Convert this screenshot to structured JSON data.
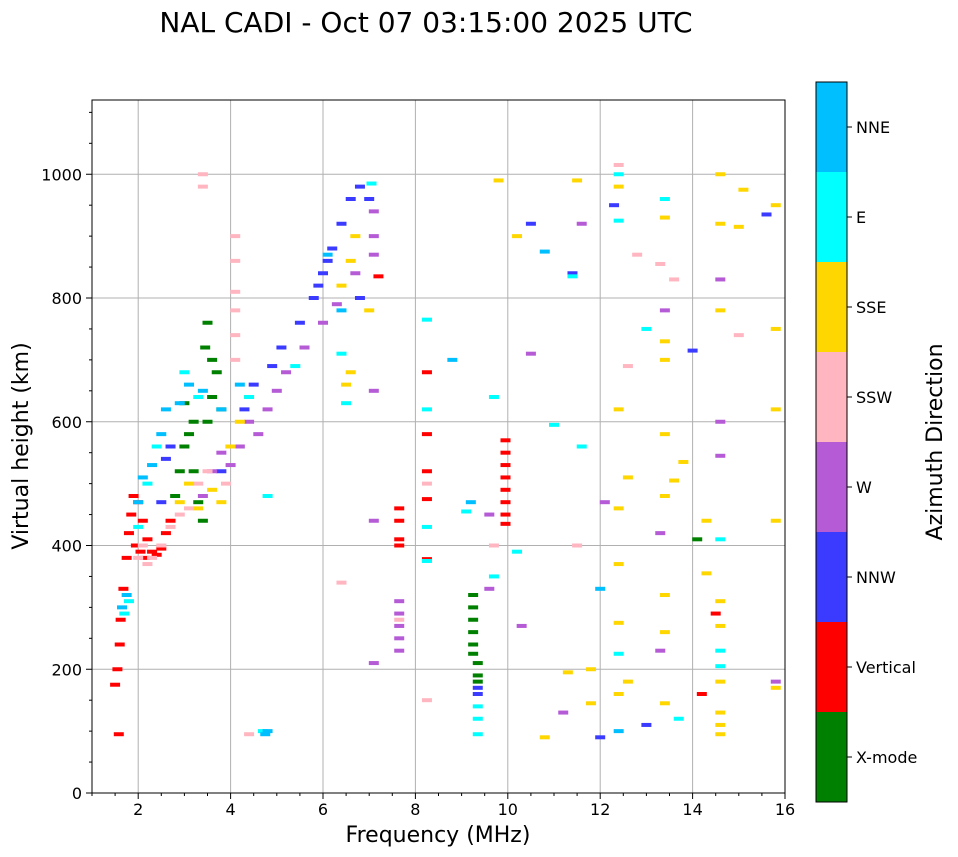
{
  "chart_data": {
    "type": "scatter",
    "title": "NAL CADI - Oct 07 03:15:00 2025 UTC",
    "xlabel": "Frequency (MHz)",
    "ylabel": "Virtual height (km)",
    "xlim": [
      1,
      16
    ],
    "ylim": [
      0,
      1120
    ],
    "grid": true,
    "x_ticks": [
      2,
      4,
      6,
      8,
      10,
      12,
      14,
      16
    ],
    "y_ticks": [
      0,
      200,
      400,
      600,
      800,
      1000
    ],
    "x_tick_labels": [
      "2",
      "4",
      "6",
      "8",
      "10",
      "12",
      "14",
      "16"
    ],
    "y_tick_labels": [
      "0",
      "200",
      "400",
      "600",
      "800",
      "1000"
    ],
    "colorbar": {
      "label": "Azimuth Direction",
      "categories": [
        "X-mode",
        "Vertical",
        "NNW",
        "W",
        "SSW",
        "SSE",
        "E",
        "NNE"
      ],
      "colors": [
        "#008000",
        "#ff0000",
        "#3b3bff",
        "#b55bd6",
        "#ffb6c1",
        "#ffd700",
        "#00ffff",
        "#00bfff"
      ]
    },
    "series": [
      {
        "name": "Vertical",
        "points": [
          [
            1.5,
            175
          ],
          [
            1.55,
            200
          ],
          [
            1.6,
            240
          ],
          [
            1.62,
            280
          ],
          [
            1.68,
            330
          ],
          [
            1.75,
            380
          ],
          [
            1.8,
            420
          ],
          [
            1.85,
            450
          ],
          [
            1.9,
            480
          ],
          [
            2.0,
            470
          ],
          [
            2.1,
            440
          ],
          [
            2.2,
            410
          ],
          [
            2.3,
            390
          ],
          [
            2.4,
            385
          ],
          [
            2.5,
            395
          ],
          [
            2.6,
            420
          ],
          [
            2.7,
            440
          ],
          [
            1.95,
            400
          ],
          [
            2.05,
            390
          ],
          [
            2.15,
            380
          ],
          [
            1.58,
            95
          ],
          [
            7.65,
            460
          ],
          [
            7.65,
            440
          ],
          [
            7.65,
            410
          ],
          [
            7.65,
            400
          ],
          [
            8.25,
            680
          ],
          [
            8.25,
            580
          ],
          [
            8.25,
            520
          ],
          [
            8.25,
            475
          ],
          [
            8.25,
            378
          ],
          [
            9.95,
            570
          ],
          [
            9.95,
            550
          ],
          [
            9.95,
            530
          ],
          [
            9.95,
            510
          ],
          [
            9.95,
            490
          ],
          [
            9.95,
            470
          ],
          [
            9.95,
            450
          ],
          [
            9.95,
            435
          ],
          [
            7.2,
            835
          ],
          [
            14.5,
            290
          ],
          [
            14.2,
            160
          ]
        ]
      },
      {
        "name": "X-mode",
        "points": [
          [
            2.8,
            480
          ],
          [
            2.9,
            520
          ],
          [
            3.0,
            560
          ],
          [
            3.1,
            580
          ],
          [
            3.2,
            520
          ],
          [
            3.3,
            470
          ],
          [
            3.4,
            440
          ],
          [
            3.5,
            600
          ],
          [
            3.6,
            640
          ],
          [
            3.7,
            680
          ],
          [
            3.8,
            620
          ],
          [
            3.5,
            760
          ],
          [
            3.45,
            720
          ],
          [
            3.6,
            700
          ],
          [
            3.2,
            600
          ],
          [
            3.0,
            630
          ],
          [
            9.25,
            320
          ],
          [
            9.25,
            300
          ],
          [
            9.25,
            280
          ],
          [
            9.25,
            260
          ],
          [
            9.25,
            240
          ],
          [
            9.25,
            225
          ],
          [
            9.35,
            210
          ],
          [
            9.35,
            190
          ],
          [
            9.35,
            180
          ],
          [
            14.1,
            410
          ]
        ]
      },
      {
        "name": "NNW",
        "points": [
          [
            2.5,
            470
          ],
          [
            2.6,
            540
          ],
          [
            2.7,
            560
          ],
          [
            3.8,
            520
          ],
          [
            4.0,
            560
          ],
          [
            4.3,
            620
          ],
          [
            4.5,
            660
          ],
          [
            4.9,
            690
          ],
          [
            5.1,
            720
          ],
          [
            5.5,
            760
          ],
          [
            5.8,
            800
          ],
          [
            6.0,
            840
          ],
          [
            6.2,
            880
          ],
          [
            6.4,
            920
          ],
          [
            6.6,
            960
          ],
          [
            6.8,
            980
          ],
          [
            7.0,
            960
          ],
          [
            6.1,
            860
          ],
          [
            5.9,
            820
          ],
          [
            9.35,
            170
          ],
          [
            9.35,
            160
          ],
          [
            10.5,
            920
          ],
          [
            12.3,
            950
          ],
          [
            13.0,
            110
          ],
          [
            14.0,
            715
          ],
          [
            15.6,
            935
          ],
          [
            12.0,
            90
          ],
          [
            11.4,
            840
          ],
          [
            6.8,
            800
          ]
        ]
      },
      {
        "name": "W",
        "points": [
          [
            3.4,
            480
          ],
          [
            3.6,
            520
          ],
          [
            3.8,
            550
          ],
          [
            4.0,
            530
          ],
          [
            4.2,
            560
          ],
          [
            4.4,
            600
          ],
          [
            4.6,
            580
          ],
          [
            4.8,
            620
          ],
          [
            5.0,
            650
          ],
          [
            5.2,
            680
          ],
          [
            5.6,
            720
          ],
          [
            6.0,
            760
          ],
          [
            6.3,
            790
          ],
          [
            6.7,
            840
          ],
          [
            7.1,
            940
          ],
          [
            7.1,
            900
          ],
          [
            7.1,
            870
          ],
          [
            7.65,
            310
          ],
          [
            7.65,
            290
          ],
          [
            7.65,
            270
          ],
          [
            7.65,
            250
          ],
          [
            7.65,
            230
          ],
          [
            7.1,
            650
          ],
          [
            7.1,
            440
          ],
          [
            7.1,
            210
          ],
          [
            9.6,
            330
          ],
          [
            9.6,
            450
          ],
          [
            10.5,
            710
          ],
          [
            10.3,
            270
          ],
          [
            11.6,
            920
          ],
          [
            12.1,
            470
          ],
          [
            13.3,
            420
          ],
          [
            13.3,
            230
          ],
          [
            13.4,
            780
          ],
          [
            14.6,
            830
          ],
          [
            14.6,
            600
          ],
          [
            14.6,
            545
          ],
          [
            15.8,
            180
          ],
          [
            11.2,
            130
          ]
        ]
      },
      {
        "name": "SSW",
        "points": [
          [
            2.0,
            380
          ],
          [
            2.1,
            400
          ],
          [
            2.2,
            370
          ],
          [
            2.3,
            380
          ],
          [
            2.5,
            400
          ],
          [
            2.7,
            430
          ],
          [
            2.9,
            450
          ],
          [
            3.1,
            460
          ],
          [
            3.3,
            500
          ],
          [
            3.5,
            520
          ],
          [
            3.9,
            500
          ],
          [
            4.1,
            740
          ],
          [
            4.1,
            700
          ],
          [
            4.1,
            900
          ],
          [
            4.1,
            860
          ],
          [
            4.1,
            810
          ],
          [
            4.1,
            780
          ],
          [
            3.4,
            1000
          ],
          [
            3.4,
            980
          ],
          [
            4.4,
            95
          ],
          [
            7.65,
            280
          ],
          [
            8.25,
            500
          ],
          [
            8.25,
            150
          ],
          [
            6.4,
            340
          ],
          [
            9.7,
            400
          ],
          [
            11.5,
            400
          ],
          [
            12.4,
            1015
          ],
          [
            12.6,
            690
          ],
          [
            13.3,
            855
          ],
          [
            13.6,
            830
          ],
          [
            15.0,
            740
          ],
          [
            12.8,
            870
          ]
        ]
      },
      {
        "name": "SSE",
        "points": [
          [
            2.9,
            470
          ],
          [
            3.1,
            500
          ],
          [
            3.3,
            460
          ],
          [
            3.6,
            490
          ],
          [
            3.8,
            470
          ],
          [
            4.0,
            560
          ],
          [
            4.2,
            600
          ],
          [
            4.4,
            640
          ],
          [
            6.4,
            820
          ],
          [
            6.6,
            860
          ],
          [
            6.5,
            660
          ],
          [
            6.6,
            680
          ],
          [
            7.0,
            780
          ],
          [
            6.7,
            900
          ],
          [
            9.8,
            990
          ],
          [
            10.2,
            900
          ],
          [
            10.8,
            90
          ],
          [
            11.3,
            195
          ],
          [
            11.5,
            990
          ],
          [
            11.8,
            200
          ],
          [
            11.8,
            145
          ],
          [
            12.4,
            370
          ],
          [
            12.4,
            275
          ],
          [
            12.4,
            160
          ],
          [
            12.6,
            510
          ],
          [
            12.6,
            180
          ],
          [
            13.4,
            730
          ],
          [
            13.4,
            700
          ],
          [
            13.4,
            580
          ],
          [
            13.4,
            480
          ],
          [
            13.4,
            320
          ],
          [
            13.4,
            260
          ],
          [
            13.4,
            145
          ],
          [
            13.4,
            930
          ],
          [
            13.6,
            505
          ],
          [
            13.8,
            535
          ],
          [
            14.3,
            355
          ],
          [
            14.3,
            440
          ],
          [
            14.6,
            1000
          ],
          [
            14.6,
            920
          ],
          [
            14.6,
            780
          ],
          [
            14.6,
            310
          ],
          [
            14.6,
            270
          ],
          [
            14.6,
            180
          ],
          [
            14.6,
            130
          ],
          [
            14.6,
            110
          ],
          [
            14.6,
            95
          ],
          [
            15.0,
            915
          ],
          [
            15.1,
            975
          ],
          [
            15.8,
            950
          ],
          [
            15.8,
            750
          ],
          [
            15.8,
            620
          ],
          [
            15.8,
            440
          ],
          [
            15.8,
            170
          ],
          [
            12.4,
            620
          ],
          [
            12.4,
            460
          ],
          [
            12.4,
            980
          ]
        ]
      },
      {
        "name": "E",
        "points": [
          [
            1.7,
            290
          ],
          [
            1.8,
            310
          ],
          [
            2.0,
            430
          ],
          [
            2.2,
            500
          ],
          [
            2.4,
            560
          ],
          [
            3.0,
            680
          ],
          [
            3.3,
            640
          ],
          [
            4.4,
            640
          ],
          [
            4.7,
            100
          ],
          [
            4.8,
            480
          ],
          [
            5.4,
            690
          ],
          [
            6.4,
            710
          ],
          [
            6.5,
            630
          ],
          [
            7.05,
            985
          ],
          [
            8.25,
            765
          ],
          [
            8.25,
            620
          ],
          [
            8.25,
            430
          ],
          [
            8.25,
            375
          ],
          [
            9.1,
            455
          ],
          [
            9.35,
            140
          ],
          [
            9.35,
            120
          ],
          [
            9.35,
            95
          ],
          [
            9.7,
            640
          ],
          [
            9.7,
            350
          ],
          [
            10.2,
            390
          ],
          [
            11.6,
            560
          ],
          [
            12.4,
            1000
          ],
          [
            12.4,
            925
          ],
          [
            12.4,
            225
          ],
          [
            13.0,
            750
          ],
          [
            13.4,
            960
          ],
          [
            13.7,
            120
          ],
          [
            14.6,
            410
          ],
          [
            14.6,
            230
          ],
          [
            14.6,
            205
          ],
          [
            11.4,
            835
          ],
          [
            11.0,
            595
          ]
        ]
      },
      {
        "name": "NNE",
        "points": [
          [
            1.65,
            300
          ],
          [
            1.75,
            320
          ],
          [
            2.0,
            470
          ],
          [
            2.1,
            510
          ],
          [
            2.3,
            530
          ],
          [
            2.5,
            580
          ],
          [
            2.6,
            620
          ],
          [
            2.9,
            630
          ],
          [
            3.1,
            660
          ],
          [
            3.4,
            650
          ],
          [
            3.8,
            620
          ],
          [
            4.2,
            660
          ],
          [
            4.8,
            100
          ],
          [
            4.75,
            95
          ],
          [
            6.1,
            870
          ],
          [
            6.4,
            780
          ],
          [
            8.8,
            700
          ],
          [
            9.2,
            470
          ],
          [
            10.8,
            875
          ],
          [
            12.0,
            330
          ],
          [
            12.4,
            100
          ]
        ]
      }
    ]
  }
}
